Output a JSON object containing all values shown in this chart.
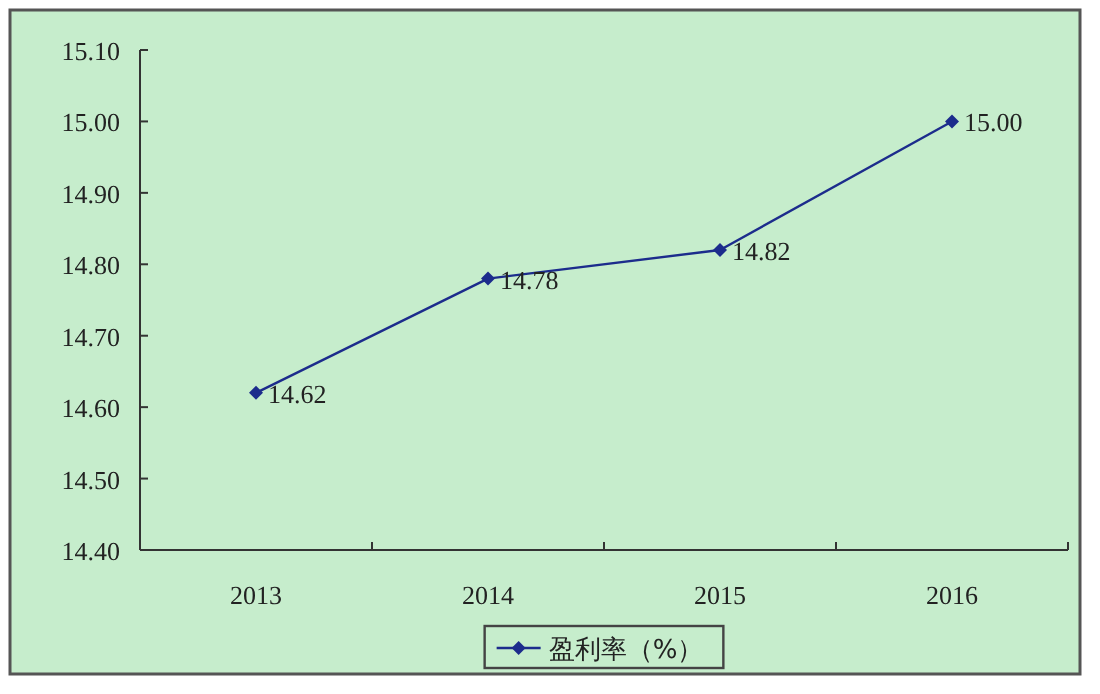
{
  "chart_data": {
    "type": "line",
    "categories": [
      "2013",
      "2014",
      "2015",
      "2016"
    ],
    "series": [
      {
        "name": "盈利率（%）",
        "color": "#1c2c8c",
        "values": [
          14.62,
          14.78,
          14.82,
          15.0
        ],
        "value_labels": [
          "14.62",
          "14.78",
          "14.82",
          "15.00"
        ]
      }
    ],
    "ylim": [
      14.4,
      15.1
    ],
    "yticks": [
      {
        "value": 14.4,
        "label": "14.40"
      },
      {
        "value": 14.5,
        "label": "14.50"
      },
      {
        "value": 14.6,
        "label": "14.60"
      },
      {
        "value": 14.7,
        "label": "14.70"
      },
      {
        "value": 14.8,
        "label": "14.80"
      },
      {
        "value": 14.9,
        "label": "14.90"
      },
      {
        "value": 15.0,
        "label": "15.00"
      },
      {
        "value": 15.1,
        "label": "15.10"
      }
    ],
    "marker": "diamond",
    "legend": "bottom"
  }
}
